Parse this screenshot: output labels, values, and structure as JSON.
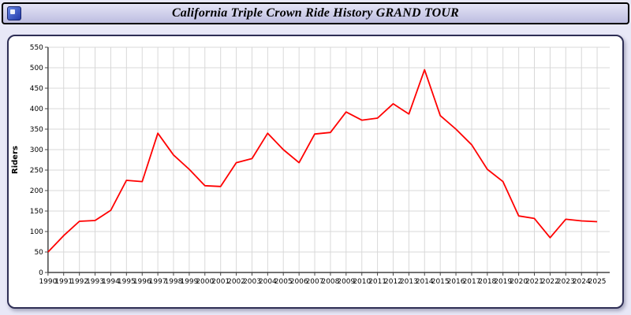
{
  "page": {
    "background": "#e8e8f7"
  },
  "titlebar": {
    "title": "California Triple Crown Ride History GRAND TOUR"
  },
  "chart_data": {
    "type": "line",
    "title": "California Triple Crown Ride History GRAND TOUR",
    "x": [
      1990,
      1991,
      1992,
      1993,
      1994,
      1995,
      1996,
      1997,
      1998,
      1999,
      2000,
      2001,
      2002,
      2003,
      2004,
      2005,
      2006,
      2007,
      2008,
      2009,
      2010,
      2011,
      2012,
      2013,
      2014,
      2015,
      2016,
      2017,
      2018,
      2019,
      2020,
      2021,
      2022,
      2023,
      2024,
      2025
    ],
    "series": [
      {
        "name": "Riders",
        "color": "#ff0000",
        "values": [
          50,
          90,
          125,
          127,
          152,
          225,
          222,
          340,
          287,
          252,
          212,
          210,
          268,
          278,
          340,
          300,
          268,
          338,
          342,
          392,
          372,
          377,
          412,
          387,
          495,
          383,
          350,
          312,
          252,
          222,
          138,
          132,
          85,
          130,
          126,
          124
        ]
      }
    ],
    "xlabel": "",
    "ylabel": "Riders",
    "ylim": [
      0,
      550
    ],
    "ytick_step": 50,
    "grid": true,
    "legend": "none",
    "grid_color": "#d8d8d8",
    "axis_color": "#444444",
    "tick_label_color": "#000000"
  }
}
